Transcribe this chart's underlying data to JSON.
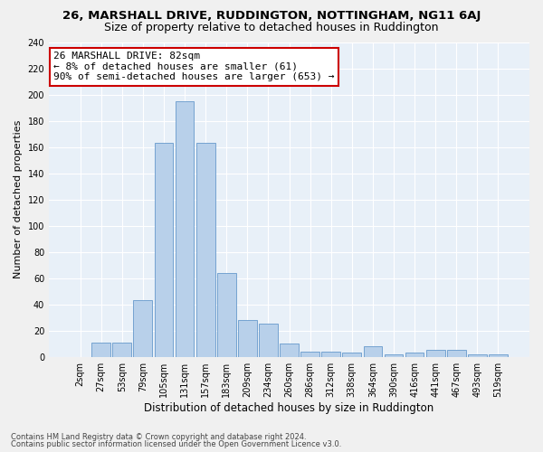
{
  "title1": "26, MARSHALL DRIVE, RUDDINGTON, NOTTINGHAM, NG11 6AJ",
  "title2": "Size of property relative to detached houses in Ruddington",
  "xlabel": "Distribution of detached houses by size in Ruddington",
  "ylabel": "Number of detached properties",
  "bar_labels": [
    "2sqm",
    "27sqm",
    "53sqm",
    "79sqm",
    "105sqm",
    "131sqm",
    "157sqm",
    "183sqm",
    "209sqm",
    "234sqm",
    "260sqm",
    "286sqm",
    "312sqm",
    "338sqm",
    "364sqm",
    "390sqm",
    "416sqm",
    "441sqm",
    "467sqm",
    "493sqm",
    "519sqm"
  ],
  "bar_values": [
    0,
    11,
    11,
    43,
    163,
    195,
    163,
    64,
    28,
    25,
    10,
    4,
    4,
    3,
    8,
    2,
    3,
    5,
    5,
    2,
    2
  ],
  "bar_color": "#b8d0ea",
  "bar_edge_color": "#6699cc",
  "bg_color": "#e8f0f8",
  "grid_color": "#ffffff",
  "annotation_line1": "26 MARSHALL DRIVE: 82sqm",
  "annotation_line2": "← 8% of detached houses are smaller (61)",
  "annotation_line3": "90% of semi-detached houses are larger (653) →",
  "annotation_box_color": "#ffffff",
  "annotation_box_edge": "#cc0000",
  "footnote1": "Contains HM Land Registry data © Crown copyright and database right 2024.",
  "footnote2": "Contains public sector information licensed under the Open Government Licence v3.0.",
  "ylim": [
    0,
    240
  ],
  "yticks": [
    0,
    20,
    40,
    60,
    80,
    100,
    120,
    140,
    160,
    180,
    200,
    220,
    240
  ],
  "title1_fontsize": 9.5,
  "title2_fontsize": 9,
  "xlabel_fontsize": 8.5,
  "ylabel_fontsize": 8,
  "tick_fontsize": 7,
  "annotation_fontsize": 8,
  "fig_width": 6.0,
  "fig_height": 5.0,
  "fig_dpi": 100
}
